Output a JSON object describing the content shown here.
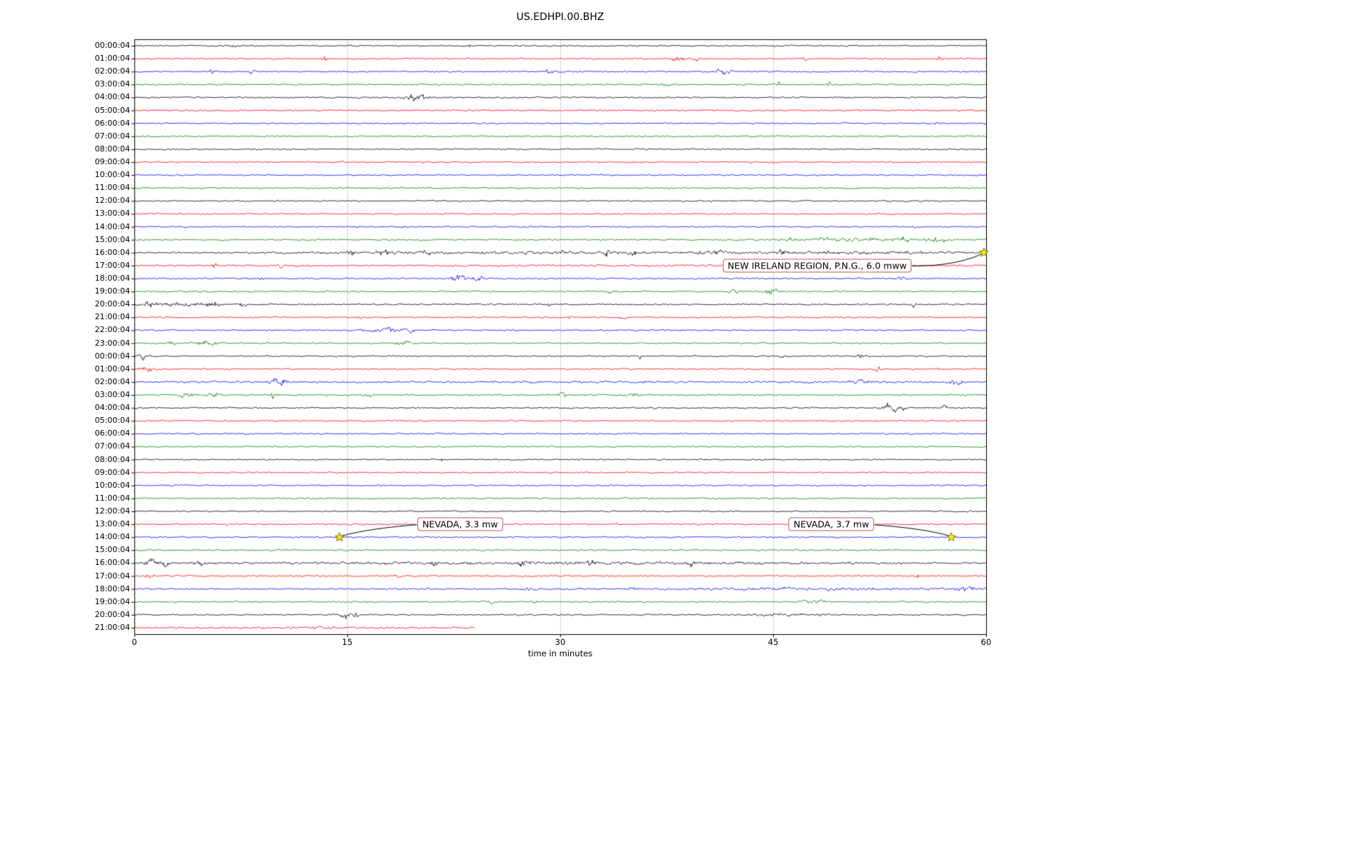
{
  "chart_data": {
    "type": "line",
    "subtype": "helicorder-seismogram",
    "title": "US.EDHPI.00.BHZ",
    "xlabel": "time in minutes",
    "x_range": [
      0,
      60
    ],
    "x_ticks": [
      0,
      15,
      30,
      45,
      60
    ],
    "grid": "vertical-only",
    "grid_color": "#c8c8c8",
    "frame_color": "#000000",
    "trace_color_cycle": [
      "#000000",
      "#ff0000",
      "#0000ff",
      "#008000"
    ],
    "noise_base_amplitude": 0.85,
    "row_labels": [
      "00:00:04",
      "01:00:04",
      "02:00:04",
      "03:00:04",
      "04:00:04",
      "05:00:04",
      "06:00:04",
      "07:00:04",
      "08:00:04",
      "09:00:04",
      "10:00:04",
      "11:00:04",
      "12:00:04",
      "13:00:04",
      "14:00:04",
      "15:00:04",
      "16:00:04",
      "17:00:04",
      "18:00:04",
      "19:00:04",
      "20:00:04",
      "21:00:04",
      "22:00:04",
      "23:00:04",
      "00:00:04",
      "01:00:04",
      "02:00:04",
      "03:00:04",
      "04:00:04",
      "05:00:04",
      "06:00:04",
      "07:00:04",
      "08:00:04",
      "09:00:04",
      "10:00:04",
      "11:00:04",
      "12:00:04",
      "13:00:04",
      "14:00:04",
      "15:00:04",
      "16:00:04",
      "17:00:04",
      "18:00:04",
      "19:00:04",
      "20:00:04",
      "21:00:04"
    ],
    "partial_last_trace": {
      "row": 45,
      "end_minute": 24
    },
    "events_format": "[row, x_minutes, width_minutes, amplitude_px]",
    "events": [
      [
        0,
        7.0,
        0.12,
        3.5
      ],
      [
        0,
        23.6,
        0.12,
        2.5
      ],
      [
        1,
        13.4,
        0.2,
        2.5
      ],
      [
        1,
        38.2,
        0.5,
        3.0
      ],
      [
        1,
        39.6,
        0.25,
        2.5
      ],
      [
        1,
        47.2,
        0.2,
        2.0
      ],
      [
        1,
        56.8,
        0.3,
        2.2
      ],
      [
        2,
        5.5,
        0.2,
        2.2
      ],
      [
        2,
        8.3,
        0.25,
        2.2
      ],
      [
        2,
        29.2,
        0.3,
        2.8
      ],
      [
        2,
        41.5,
        0.5,
        3.5
      ],
      [
        2,
        55.2,
        0.2,
        2.0
      ],
      [
        3,
        37.4,
        0.4,
        2.2
      ],
      [
        3,
        45.4,
        0.12,
        3.5
      ],
      [
        3,
        48.9,
        0.3,
        2.2
      ],
      [
        4,
        19.5,
        0.4,
        3.0
      ],
      [
        4,
        20.3,
        0.5,
        3.5
      ],
      [
        6,
        56.4,
        0.2,
        2.5
      ],
      [
        15,
        46.0,
        0.4,
        3.5
      ],
      [
        15,
        48.6,
        0.4,
        3.0
      ],
      [
        15,
        52.0,
        6.0,
        1.2
      ],
      [
        15,
        54.2,
        0.5,
        2.5
      ],
      [
        15,
        56.6,
        0.6,
        2.5
      ],
      [
        16,
        15.3,
        0.2,
        3.5
      ],
      [
        16,
        17.6,
        0.3,
        3.0
      ],
      [
        16,
        20.6,
        0.35,
        3.5
      ],
      [
        16,
        25.0,
        18.0,
        0.8
      ],
      [
        16,
        30.1,
        0.3,
        2.8
      ],
      [
        16,
        33.3,
        0.3,
        3.0
      ],
      [
        16,
        35.1,
        0.3,
        2.6
      ],
      [
        16,
        39.7,
        0.3,
        3.5
      ],
      [
        16,
        41.2,
        0.3,
        2.8
      ],
      [
        16,
        45.6,
        0.3,
        3.0
      ],
      [
        16,
        52.0,
        8.0,
        0.9
      ],
      [
        17,
        5.6,
        0.2,
        3.0
      ],
      [
        17,
        10.3,
        0.2,
        3.0
      ],
      [
        17,
        40.0,
        20.0,
        0.4
      ],
      [
        18,
        9.0,
        0.3,
        1.8
      ],
      [
        18,
        22.9,
        0.7,
        3.5
      ],
      [
        18,
        24.2,
        0.4,
        2.5
      ],
      [
        18,
        54.0,
        0.3,
        1.8
      ],
      [
        19,
        33.6,
        0.2,
        2.8
      ],
      [
        19,
        42.2,
        0.3,
        2.5
      ],
      [
        19,
        44.9,
        0.45,
        4.5
      ],
      [
        20,
        1.2,
        0.4,
        3.0
      ],
      [
        20,
        3.0,
        2.5,
        1.6
      ],
      [
        20,
        5.6,
        0.4,
        2.8
      ],
      [
        20,
        7.6,
        0.3,
        2.6
      ],
      [
        20,
        29.2,
        0.2,
        1.8
      ],
      [
        20,
        54.9,
        0.2,
        3.0
      ],
      [
        21,
        15.9,
        0.15,
        2.6
      ],
      [
        21,
        30.7,
        0.2,
        2.6
      ],
      [
        21,
        34.4,
        0.25,
        3.0
      ],
      [
        22,
        17.6,
        1.1,
        2.8
      ],
      [
        22,
        19.2,
        0.5,
        2.2
      ],
      [
        23,
        2.6,
        0.3,
        2.2
      ],
      [
        23,
        5.0,
        0.7,
        2.8
      ],
      [
        23,
        18.9,
        0.6,
        3.0
      ],
      [
        24,
        0.6,
        0.3,
        3.5
      ],
      [
        24,
        35.6,
        0.12,
        4.0
      ],
      [
        24,
        45.6,
        0.2,
        2.8
      ],
      [
        24,
        51.1,
        0.2,
        2.6
      ],
      [
        25,
        1.0,
        0.7,
        2.8
      ],
      [
        25,
        52.4,
        0.3,
        2.6
      ],
      [
        25,
        56.6,
        0.2,
        2.2
      ],
      [
        26,
        10.1,
        0.7,
        3.0
      ],
      [
        26,
        30.0,
        25.0,
        0.5
      ],
      [
        26,
        51.2,
        0.6,
        2.6
      ],
      [
        26,
        57.9,
        0.6,
        3.0
      ],
      [
        27,
        3.6,
        0.6,
        2.8
      ],
      [
        27,
        5.6,
        0.4,
        2.8
      ],
      [
        27,
        9.8,
        0.25,
        5.5
      ],
      [
        27,
        16.4,
        0.3,
        3.0
      ],
      [
        27,
        30.2,
        0.4,
        2.2
      ],
      [
        27,
        35.1,
        0.5,
        2.8
      ],
      [
        28,
        53.1,
        0.6,
        4.5
      ],
      [
        28,
        54.0,
        0.3,
        3.5
      ],
      [
        28,
        57.1,
        0.2,
        2.6
      ],
      [
        32,
        21.6,
        0.1,
        1.8
      ],
      [
        40,
        1.1,
        0.35,
        5.5
      ],
      [
        40,
        2.1,
        0.3,
        3.5
      ],
      [
        40,
        4.6,
        0.3,
        3.0
      ],
      [
        40,
        21.1,
        0.3,
        2.8
      ],
      [
        40,
        27.2,
        0.3,
        2.6
      ],
      [
        40,
        30.0,
        27.0,
        0.9
      ],
      [
        40,
        32.2,
        0.3,
        2.8
      ],
      [
        40,
        39.2,
        0.3,
        3.0
      ],
      [
        40,
        44.2,
        0.3,
        2.8
      ],
      [
        41,
        1.1,
        0.3,
        2.2
      ],
      [
        41,
        18.5,
        0.2,
        3.0
      ],
      [
        41,
        55.1,
        0.2,
        1.8
      ],
      [
        42,
        27.9,
        0.4,
        3.0
      ],
      [
        42,
        35.2,
        0.3,
        2.6
      ],
      [
        42,
        48.0,
        10.0,
        1.0
      ],
      [
        42,
        58.6,
        0.6,
        3.0
      ],
      [
        43,
        16.5,
        0.2,
        2.6
      ],
      [
        43,
        25.1,
        0.2,
        2.2
      ],
      [
        43,
        28.1,
        0.2,
        2.2
      ],
      [
        43,
        47.8,
        0.6,
        3.0
      ],
      [
        44,
        14.9,
        0.3,
        4.5
      ],
      [
        44,
        15.6,
        0.2,
        2.8
      ],
      [
        44,
        46.0,
        3.5,
        1.0
      ],
      [
        45,
        12.0,
        12.0,
        0.5
      ]
    ],
    "marker_symbol": "star",
    "marker_color": "#ffee00",
    "markers": [
      {
        "x": 59.85,
        "row": 16
      },
      {
        "x": 14.45,
        "row": 38
      },
      {
        "x": 57.55,
        "row": 38
      }
    ],
    "annotations": [
      {
        "label": "NEW IRELAND REGION, P.N.G., 6.0 mww",
        "box_x": 48.1,
        "box_row": 17.0,
        "connector": {
          "from_x": 53.85,
          "from_row": 17.0,
          "ctrl_x": 57.5,
          "ctrl_row": 17.2,
          "to_x": 59.7,
          "to_row": 16.1
        }
      },
      {
        "label": "NEVADA, 3.3 mw",
        "box_x": 22.95,
        "box_row": 37.0,
        "connector": {
          "from_x": 20.3,
          "from_row": 37.0,
          "ctrl_x": 16.6,
          "ctrl_row": 37.3,
          "to_x": 14.6,
          "to_row": 37.9
        }
      },
      {
        "label": "NEVADA, 3.7 mw",
        "box_x": 49.1,
        "box_row": 37.0,
        "connector": {
          "from_x": 51.6,
          "from_row": 37.0,
          "ctrl_x": 55.6,
          "ctrl_row": 37.3,
          "to_x": 57.4,
          "to_row": 37.9
        }
      }
    ]
  }
}
